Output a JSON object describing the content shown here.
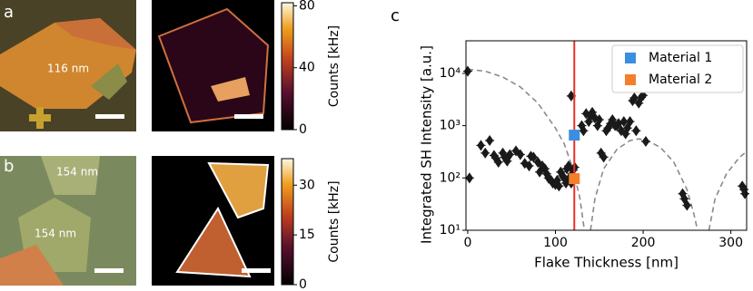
{
  "panels": {
    "a": {
      "letter": "a",
      "thickness": "116 nm"
    },
    "b": {
      "letter": "b",
      "thickness": "154 nm",
      "thickness2": "154 nm"
    },
    "c": {
      "letter": "c"
    }
  },
  "colorbars": [
    {
      "label": "Counts [kHz]",
      "lim": [
        0,
        82
      ],
      "ticks": [
        0,
        40,
        80
      ]
    },
    {
      "label": "Counts [kHz]",
      "lim": [
        0,
        38
      ],
      "ticks": [
        0,
        15,
        30
      ]
    }
  ],
  "chart_data": {
    "type": "scatter",
    "xlabel": "Flake Thickness [nm]",
    "ylabel": "Integrated SH Intensity [a.u.]",
    "xlim": [
      -2,
      318
    ],
    "ylim": [
      10,
      42000
    ],
    "log_y": true,
    "xticks": [
      0,
      100,
      200,
      300
    ],
    "yticks": [
      {
        "value": 10,
        "label": "10¹"
      },
      {
        "value": 100,
        "label": "10²"
      },
      {
        "value": 1000,
        "label": "10³"
      },
      {
        "value": 10000,
        "label": "10⁴"
      }
    ],
    "legend": "upper right",
    "vline": {
      "x": 121.5,
      "color": "#e8312a"
    },
    "points": {
      "color": "#1a1a1a",
      "x": [
        0,
        2,
        15,
        20,
        25,
        30,
        32,
        35,
        40,
        42,
        45,
        48,
        55,
        60,
        65,
        70,
        72,
        75,
        80,
        82,
        85,
        88,
        90,
        92,
        95,
        97,
        100,
        102,
        104,
        106,
        108,
        110,
        112,
        113,
        115,
        116,
        118,
        119,
        120,
        122,
        118,
        130,
        132,
        135,
        138,
        140,
        142,
        145,
        148,
        150,
        152,
        155,
        158,
        160,
        163,
        165,
        168,
        170,
        172,
        175,
        178,
        180,
        182,
        185,
        188,
        190,
        192,
        195,
        198,
        200,
        203,
        245,
        247,
        250,
        313,
        315,
        316
      ],
      "y": [
        11000,
        100,
        420,
        300,
        520,
        270,
        240,
        200,
        300,
        250,
        210,
        280,
        330,
        280,
        190,
        170,
        260,
        250,
        200,
        130,
        170,
        150,
        120,
        100,
        90,
        80,
        75,
        90,
        70,
        130,
        110,
        100,
        80,
        150,
        170,
        100,
        80,
        120,
        140,
        160,
        3700,
        1000,
        800,
        1700,
        1200,
        1500,
        1800,
        1400,
        1000,
        1300,
        300,
        250,
        800,
        900,
        1100,
        1300,
        1000,
        1000,
        1100,
        800,
        1200,
        700,
        900,
        1200,
        3000,
        3400,
        800,
        2700,
        3500,
        3800,
        500,
        50,
        40,
        30,
        70,
        60,
        50
      ]
    },
    "curve": {
      "color": "#8a8a8a",
      "x": [
        0,
        20,
        40,
        60,
        80,
        100,
        110,
        120,
        128,
        133,
        136,
        140,
        145,
        155,
        170,
        185,
        195,
        205,
        220,
        235,
        250,
        258,
        262,
        268,
        275,
        282,
        295,
        310,
        318
      ],
      "values": [
        12000,
        11000,
        8500,
        5500,
        2700,
        900,
        450,
        150,
        40,
        10,
        null,
        10,
        40,
        150,
        350,
        520,
        560,
        520,
        380,
        200,
        60,
        20,
        10,
        null,
        10,
        40,
        120,
        250,
        320
      ]
    },
    "series": [
      {
        "name": "Material 1",
        "color": "#3b8ee0",
        "x": [
          121.5
        ],
        "values": [
          660
        ]
      },
      {
        "name": "Material 2",
        "color": "#f47f2b",
        "x": [
          121.5
        ],
        "values": [
          97
        ]
      }
    ]
  }
}
